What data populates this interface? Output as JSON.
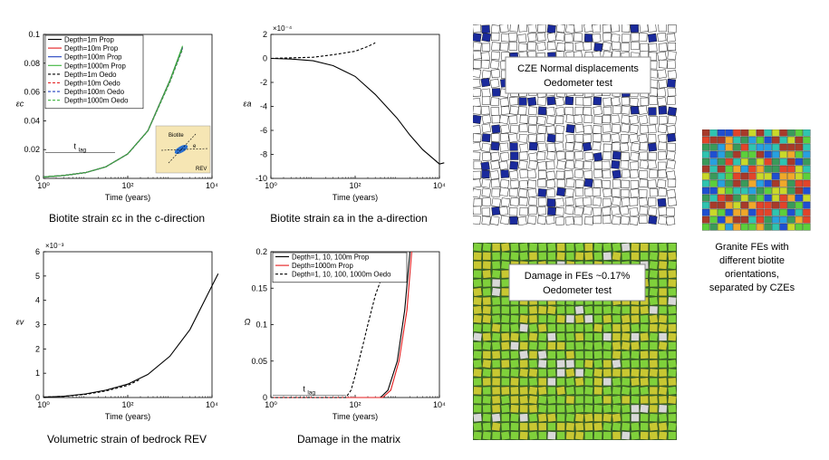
{
  "charts": [
    {
      "caption": "Biotite strain εc in the c-direction",
      "ylabel": "εc",
      "xlabel": "Time (years)",
      "yticks": [
        "0",
        "0.02",
        "0.04",
        "0.06",
        "0.08",
        "0.1"
      ],
      "xticks": [
        "10⁰",
        "10²",
        "10⁴"
      ],
      "annotation": "tlag",
      "inset": {
        "label_top": "Biotite",
        "label_side": "e",
        "label_bottom": "REV"
      },
      "legend": [
        "Depth=1m Prop",
        "Depth=10m Prop",
        "Depth=100m Prop",
        "Depth=1000m Prop",
        "Depth=1m Oedo",
        "Depth=10m Oedo",
        "Depth=100m Oedo",
        "Depth=1000m Oedo"
      ]
    },
    {
      "caption": "Biotite strain εa in the a-direction",
      "ylabel": "εa",
      "xlabel": "Time (years)",
      "exponent": "×10⁻⁴",
      "yticks": [
        "2",
        "0",
        "-2",
        "-4",
        "-6",
        "-8",
        "-10"
      ],
      "xticks": [
        "10⁰",
        "10²",
        "10⁴"
      ]
    },
    {
      "caption": "Volumetric strain of bedrock REV",
      "ylabel": "εv",
      "xlabel": "Time (years)",
      "exponent": "×10⁻³",
      "yticks": [
        "0",
        "1",
        "2",
        "3",
        "4",
        "5",
        "6"
      ],
      "xticks": [
        "10⁰",
        "10²",
        "10⁴"
      ]
    },
    {
      "caption": "Damage in the matrix",
      "ylabel": "Ω",
      "xlabel": "Time (years)",
      "yticks": [
        "0",
        "0.05",
        "0.1",
        "0.15",
        "0.2"
      ],
      "xticks": [
        "10⁰",
        "10²",
        "10⁴"
      ],
      "annotation": "tlag",
      "legend": [
        "Depth=1, 10, 100m Prop",
        "Depth=1000m Prop",
        "Depth=1, 10, 100, 1000m Oedo"
      ]
    }
  ],
  "images": {
    "cze_label_line1": "CZE Normal displacements",
    "cze_label_line2": "Oedometer test",
    "damage_label_line1": "Damage in FEs ~0.17%",
    "damage_label_line2": "Oedometer test",
    "side_note_lines": [
      "Granite FEs with",
      "different biotite",
      "orientations,",
      "separated by CZEs"
    ]
  },
  "colors": {
    "prop_1m": "#000000",
    "prop_10m": "#e41a1c",
    "prop_100m": "#1f3fbf",
    "prop_1000m": "#3cb43c",
    "cze_blue": "#1a2a9c",
    "damage_green": "#7fd13b",
    "damage_yellow": "#c8c832"
  },
  "chart_data": [
    {
      "type": "line",
      "title": "Biotite strain εc in the c-direction",
      "xlabel": "Time (years)",
      "ylabel": "εc",
      "xscale": "log",
      "xlim": [
        1,
        10000
      ],
      "ylim": [
        0,
        0.1
      ],
      "legend_position": "top-left",
      "series": [
        {
          "name": "Depth=1m Prop",
          "style": "solid",
          "x": [
            1,
            3,
            10,
            30,
            100,
            300,
            1000,
            2000
          ],
          "y": [
            0.001,
            0.002,
            0.004,
            0.008,
            0.017,
            0.033,
            0.068,
            0.091
          ]
        },
        {
          "name": "Depth=10m Prop",
          "style": "solid",
          "x": [
            1,
            3,
            10,
            30,
            100,
            300,
            1000,
            2000
          ],
          "y": [
            0.001,
            0.002,
            0.004,
            0.008,
            0.017,
            0.033,
            0.068,
            0.091
          ]
        },
        {
          "name": "Depth=100m Prop",
          "style": "solid",
          "x": [
            1,
            3,
            10,
            30,
            100,
            300,
            1000,
            2000
          ],
          "y": [
            0.001,
            0.002,
            0.004,
            0.008,
            0.017,
            0.033,
            0.068,
            0.091
          ]
        },
        {
          "name": "Depth=1000m Prop",
          "style": "solid",
          "x": [
            1,
            3,
            10,
            30,
            100,
            300,
            1000,
            2000
          ],
          "y": [
            0.001,
            0.002,
            0.004,
            0.008,
            0.017,
            0.033,
            0.068,
            0.092
          ]
        },
        {
          "name": "Depth=1m Oedo",
          "style": "dashed",
          "x": [
            1,
            3,
            10,
            30,
            100,
            300,
            1000,
            2000
          ],
          "y": [
            0.001,
            0.002,
            0.004,
            0.008,
            0.017,
            0.033,
            0.067,
            0.09
          ]
        },
        {
          "name": "Depth=10m Oedo",
          "style": "dashed",
          "x": [
            1,
            3,
            10,
            30,
            100,
            300,
            1000,
            2000
          ],
          "y": [
            0.001,
            0.002,
            0.004,
            0.008,
            0.017,
            0.033,
            0.067,
            0.09
          ]
        },
        {
          "name": "Depth=100m Oedo",
          "style": "dashed",
          "x": [
            1,
            3,
            10,
            30,
            100,
            300,
            1000,
            2000
          ],
          "y": [
            0.001,
            0.002,
            0.004,
            0.008,
            0.017,
            0.033,
            0.067,
            0.09
          ]
        },
        {
          "name": "Depth=1000m Oedo",
          "style": "dashed",
          "x": [
            1,
            3,
            10,
            30,
            100,
            300,
            1000,
            2000
          ],
          "y": [
            0.001,
            0.002,
            0.004,
            0.008,
            0.017,
            0.033,
            0.067,
            0.09
          ]
        }
      ]
    },
    {
      "type": "line",
      "title": "Biotite strain εa in the a-direction",
      "xlabel": "Time (years)",
      "ylabel": "εa (×10⁻⁴)",
      "xscale": "log",
      "xlim": [
        1,
        10000
      ],
      "ylim": [
        -10,
        2
      ],
      "series": [
        {
          "style": "solid",
          "x": [
            1,
            3,
            10,
            30,
            100,
            300,
            1000,
            2000,
            4000,
            10000,
            13000
          ],
          "y": [
            0,
            -0.05,
            -0.2,
            -0.6,
            -1.5,
            -3,
            -5,
            -6.4,
            -7.6,
            -8.8,
            -8.7
          ]
        },
        {
          "style": "dashed",
          "x": [
            1,
            10,
            30,
            100,
            200,
            300
          ],
          "y": [
            0,
            0.1,
            0.3,
            0.6,
            1,
            1.3
          ]
        }
      ]
    },
    {
      "type": "line",
      "title": "Volumetric strain of bedrock REV",
      "xlabel": "Time (years)",
      "ylabel": "εv (×10⁻³)",
      "xscale": "log",
      "xlim": [
        1,
        10000
      ],
      "ylim": [
        0,
        6
      ],
      "series": [
        {
          "style": "solid",
          "x": [
            1,
            3,
            10,
            30,
            100,
            300,
            1000,
            3000,
            10000,
            14000
          ],
          "y": [
            0.02,
            0.05,
            0.15,
            0.3,
            0.55,
            0.95,
            1.7,
            2.8,
            4.6,
            5.1
          ]
        },
        {
          "style": "dashed",
          "x": [
            1,
            3,
            10,
            30,
            100,
            200
          ],
          "y": [
            0.02,
            0.05,
            0.13,
            0.27,
            0.5,
            0.75
          ]
        }
      ]
    },
    {
      "type": "line",
      "title": "Damage in the matrix",
      "xlabel": "Time (years)",
      "ylabel": "Ω",
      "xscale": "log",
      "xlim": [
        1,
        10000
      ],
      "ylim": [
        0,
        0.2
      ],
      "legend_position": "top-left",
      "series": [
        {
          "name": "Depth=1, 10, 100m Prop",
          "style": "solid",
          "x": [
            1,
            400,
            600,
            1000,
            1500,
            2000
          ],
          "y": [
            0,
            0,
            0.01,
            0.05,
            0.12,
            0.2
          ]
        },
        {
          "name": "Depth=1000m Prop",
          "style": "solid",
          "x": [
            1,
            450,
            700,
            1100,
            1700,
            2200
          ],
          "y": [
            0,
            0,
            0.01,
            0.05,
            0.12,
            0.2
          ]
        },
        {
          "name": "Depth=1, 10, 100, 1000m Oedo",
          "style": "dashed",
          "x": [
            1,
            60,
            80,
            100,
            150,
            200,
            300,
            400
          ],
          "y": [
            0,
            0,
            0.01,
            0.03,
            0.07,
            0.1,
            0.14,
            0.16
          ]
        }
      ]
    }
  ]
}
